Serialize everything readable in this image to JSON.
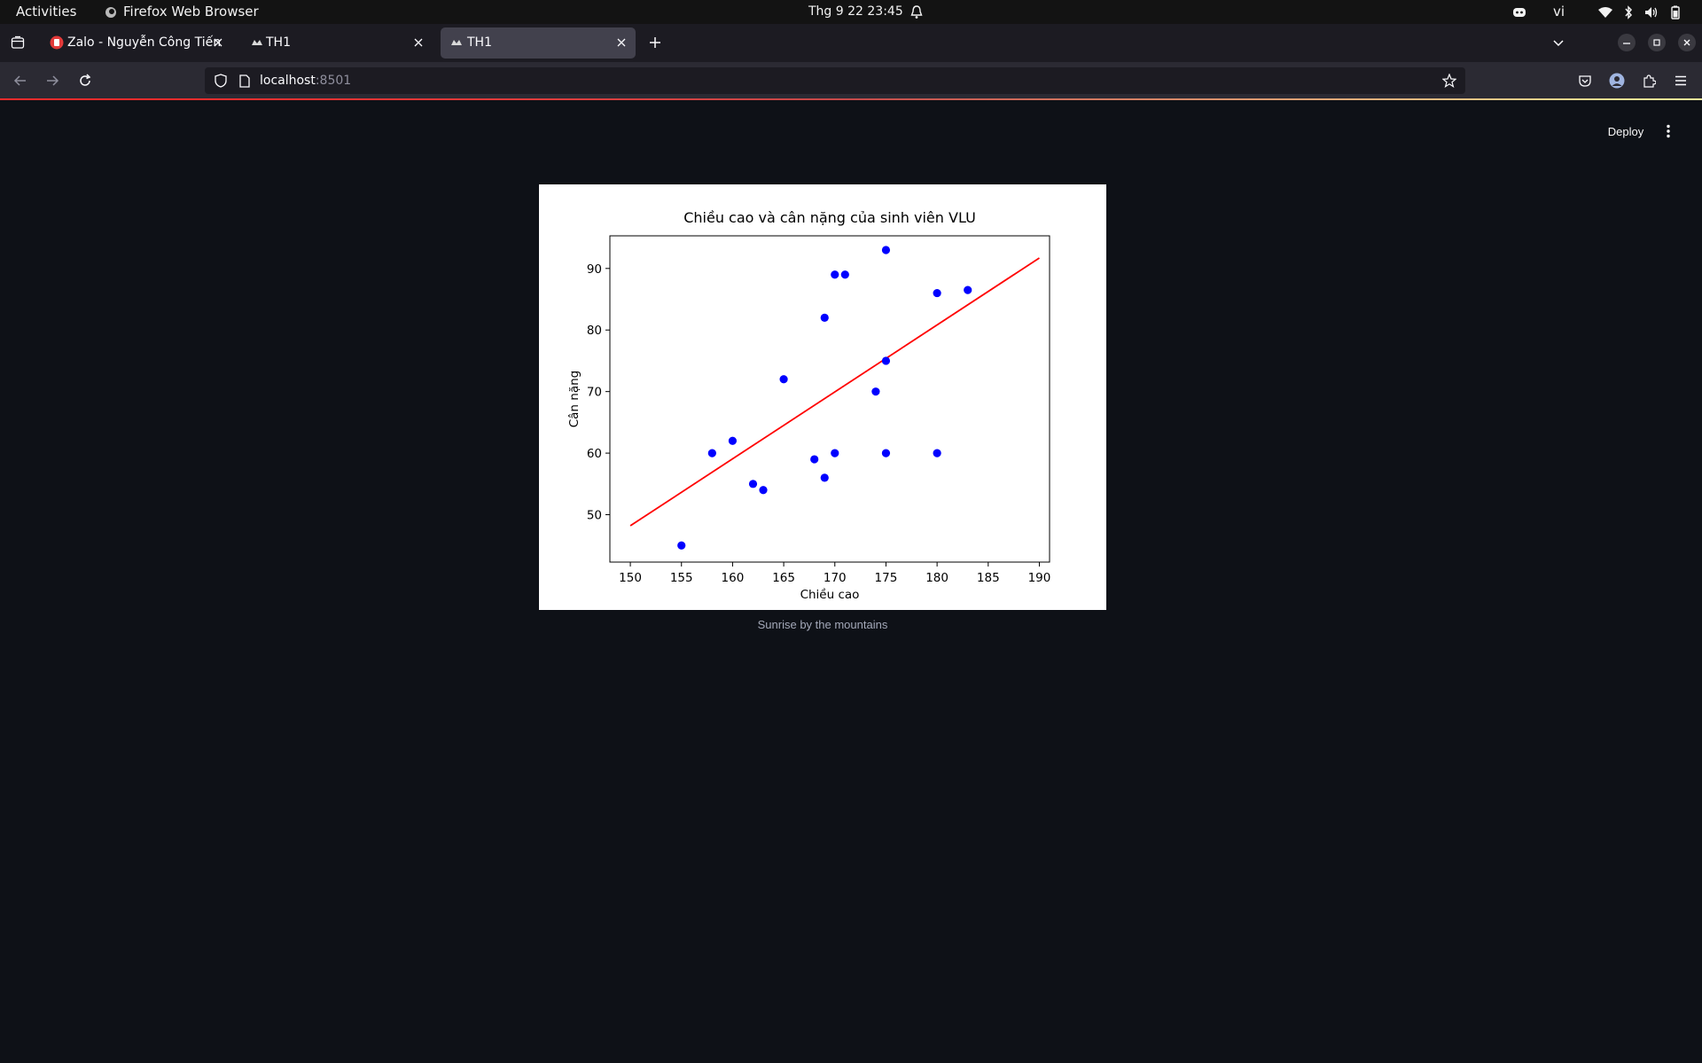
{
  "system_bar": {
    "activities": "Activities",
    "app_name": "Firefox Web Browser",
    "clock": "Thg 9 22  23:45",
    "language": "vi"
  },
  "browser": {
    "tabs": [
      {
        "label": "Zalo - Nguyễn Công Tiến",
        "active": false,
        "icon": "zalo-icon"
      },
      {
        "label": "TH1",
        "active": false,
        "icon": "streamlit-icon"
      },
      {
        "label": "TH1",
        "active": true,
        "icon": "streamlit-icon"
      }
    ],
    "url_host": "localhost",
    "url_port": ":8501"
  },
  "app": {
    "deploy_label": "Deploy",
    "caption": "Sunrise by the mountains"
  },
  "colors": {
    "page_bg": "#0e1117",
    "points": "#0000ff",
    "trend_line": "#ff0000"
  },
  "chart_data": {
    "type": "scatter",
    "title": "Chiều cao và cân nặng của sinh viên VLU",
    "xlabel": "Chiều cao",
    "ylabel": "Cân nặng",
    "xlim": [
      148,
      191
    ],
    "ylim": [
      42.3,
      95.3
    ],
    "xticks": [
      150,
      155,
      160,
      165,
      170,
      175,
      180,
      185,
      190
    ],
    "yticks": [
      50,
      60,
      70,
      80,
      90
    ],
    "grid": false,
    "points": [
      {
        "x": 155,
        "y": 45
      },
      {
        "x": 158,
        "y": 60
      },
      {
        "x": 160,
        "y": 62
      },
      {
        "x": 162,
        "y": 55
      },
      {
        "x": 163,
        "y": 54
      },
      {
        "x": 165,
        "y": 72
      },
      {
        "x": 168,
        "y": 59
      },
      {
        "x": 169,
        "y": 82
      },
      {
        "x": 169,
        "y": 56
      },
      {
        "x": 170,
        "y": 89
      },
      {
        "x": 170,
        "y": 60
      },
      {
        "x": 171,
        "y": 89
      },
      {
        "x": 174,
        "y": 70
      },
      {
        "x": 175,
        "y": 93
      },
      {
        "x": 175,
        "y": 75
      },
      {
        "x": 175,
        "y": 60
      },
      {
        "x": 180,
        "y": 86
      },
      {
        "x": 180,
        "y": 60
      },
      {
        "x": 183,
        "y": 86.5
      }
    ],
    "trend_line": [
      {
        "x": 150,
        "y": 48.2
      },
      {
        "x": 190,
        "y": 91.7
      }
    ]
  }
}
